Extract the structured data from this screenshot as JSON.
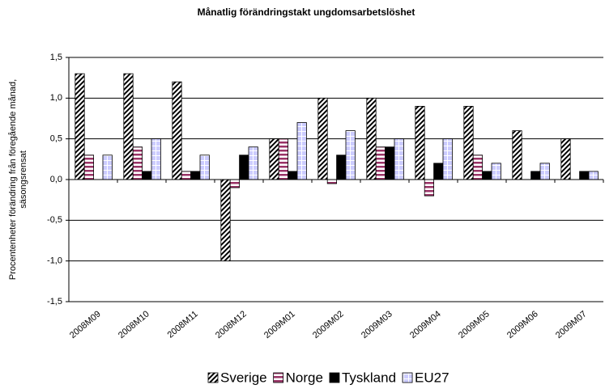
{
  "chart_data": {
    "type": "bar",
    "title": "Månatlig förändringstakt ungdomsarbetslöshet",
    "y_label": [
      "Procentenheter förändring från föregående månad,",
      "säsongsrensat"
    ],
    "categories": [
      "2008M09",
      "2008M10",
      "2008M11",
      "2008M12",
      "2009M01",
      "2009M02",
      "2009M03",
      "2009M04",
      "2009M05",
      "2009M06",
      "2009M07"
    ],
    "series": [
      {
        "name": "Sverige",
        "color": "#000000",
        "values": [
          1.3,
          1.3,
          1.2,
          -1.0,
          0.5,
          1.0,
          1.0,
          0.9,
          0.9,
          0.6,
          0.5
        ]
      },
      {
        "name": "Norge",
        "color": "#993366",
        "values": [
          0.3,
          0.4,
          0.1,
          -0.1,
          0.5,
          -0.05,
          0.4,
          -0.2,
          0.3,
          0,
          0
        ]
      },
      {
        "name": "Tyskland",
        "color": "#000000",
        "values": [
          0,
          0.1,
          0.1,
          0.3,
          0.1,
          0.3,
          0.4,
          0.2,
          0.1,
          0.1,
          0.1
        ]
      },
      {
        "name": "EU27",
        "color": "#ccccff",
        "values": [
          0.3,
          0.5,
          0.3,
          0.4,
          0.7,
          0.6,
          0.5,
          0.5,
          0.2,
          0.2,
          0.1
        ]
      }
    ],
    "patterns": [
      "diagonal",
      "horizontal",
      "solid",
      "grid"
    ],
    "ylim": [
      -1.5,
      1.5
    ],
    "yticks": [
      {
        "value": -1.5,
        "label": "-1,5"
      },
      {
        "value": -1.0,
        "label": "-1,0"
      },
      {
        "value": -0.5,
        "label": "-0,5"
      },
      {
        "value": 0,
        "label": "0,0"
      },
      {
        "value": 0.5,
        "label": "0,5"
      },
      {
        "value": 1.0,
        "label": "1,0"
      },
      {
        "value": 1.5,
        "label": "1,5"
      }
    ],
    "grid": true,
    "legend": "bottom"
  }
}
